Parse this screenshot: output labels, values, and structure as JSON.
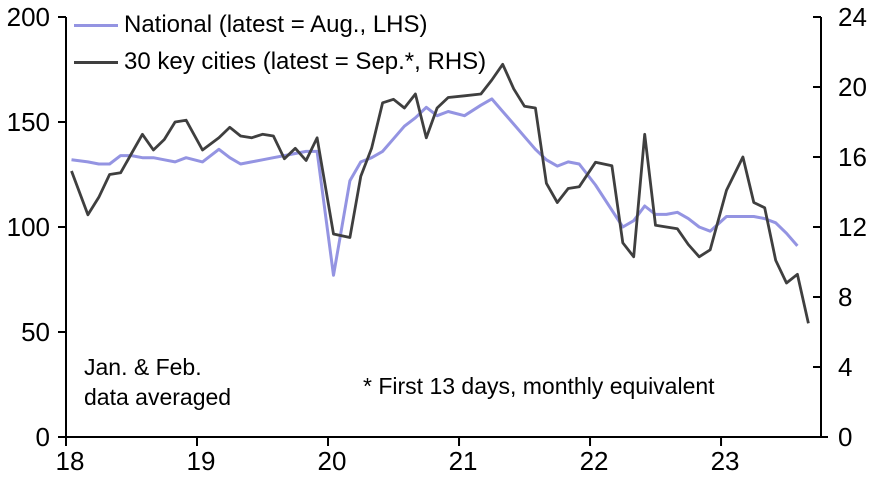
{
  "chart_data": {
    "type": "line",
    "title": "",
    "xlabel": "",
    "ylabel_left": "",
    "ylabel_right": "",
    "grid": false,
    "legend_position": "top-left-inside",
    "axis_color": "#000000",
    "xlim": [
      18,
      23.763
    ],
    "x_ticks": [
      18,
      19,
      20,
      21,
      22,
      23
    ],
    "x_tick_labels": [
      "18",
      "19",
      "20",
      "21",
      "22",
      "23"
    ],
    "left_axis": {
      "range": [
        0,
        200
      ],
      "ticks": [
        0,
        50,
        100,
        150,
        200
      ],
      "tick_labels": [
        "0",
        "50",
        "100",
        "150",
        "200"
      ]
    },
    "right_axis": {
      "range": [
        0,
        24
      ],
      "ticks": [
        0,
        4,
        8,
        12,
        16,
        20,
        24
      ],
      "tick_labels": [
        "0",
        "4",
        "8",
        "12",
        "16",
        "20",
        "24"
      ]
    },
    "legend": [
      {
        "label": "National (latest = Aug., LHS)",
        "color": "#9494e2",
        "axis": "left"
      },
      {
        "label": "30 key cities (latest = Sep.*, RHS)",
        "color": "#3f3f3f",
        "axis": "right"
      }
    ],
    "annotations": [
      {
        "id": "data-averaged-note",
        "line1": "Jan. & Feb.",
        "line2": "data averaged"
      },
      {
        "id": "footnote",
        "text": "* First 13 days, monthly equivalent"
      }
    ],
    "series": [
      {
        "name": "National",
        "axis": "left",
        "color": "#9494e2",
        "x": [
          18.042,
          18.167,
          18.25,
          18.333,
          18.417,
          18.5,
          18.583,
          18.667,
          18.75,
          18.833,
          18.917,
          19.042,
          19.167,
          19.25,
          19.333,
          19.417,
          19.5,
          19.583,
          19.667,
          19.75,
          19.833,
          19.917,
          20.042,
          20.167,
          20.25,
          20.333,
          20.417,
          20.5,
          20.583,
          20.667,
          20.75,
          20.833,
          20.917,
          21.042,
          21.167,
          21.25,
          21.333,
          21.417,
          21.5,
          21.583,
          21.667,
          21.75,
          21.833,
          21.917,
          22.042,
          22.167,
          22.25,
          22.333,
          22.417,
          22.5,
          22.583,
          22.667,
          22.75,
          22.833,
          22.917,
          23.042,
          23.167,
          23.25,
          23.333,
          23.417,
          23.5,
          23.583
        ],
        "values": [
          132,
          131,
          130,
          130,
          134,
          134,
          133,
          133,
          132,
          131,
          133,
          131,
          137,
          133,
          130,
          131,
          132,
          133,
          134,
          135,
          136,
          136,
          77,
          122,
          131,
          133,
          136,
          142,
          148,
          152,
          157,
          153,
          155,
          153,
          158,
          161,
          155,
          149,
          143,
          137,
          132,
          129,
          131,
          130,
          120,
          108,
          100,
          103,
          110,
          106,
          106,
          107,
          104,
          100,
          98,
          105,
          105,
          105,
          104,
          102,
          97,
          91
        ]
      },
      {
        "name": "30 key cities",
        "axis": "right",
        "color": "#3f3f3f",
        "x": [
          18.042,
          18.167,
          18.25,
          18.333,
          18.417,
          18.5,
          18.583,
          18.667,
          18.75,
          18.833,
          18.917,
          19.042,
          19.167,
          19.25,
          19.333,
          19.417,
          19.5,
          19.583,
          19.667,
          19.75,
          19.833,
          19.917,
          20.042,
          20.167,
          20.25,
          20.333,
          20.417,
          20.5,
          20.583,
          20.667,
          20.75,
          20.833,
          20.917,
          21.042,
          21.167,
          21.25,
          21.333,
          21.417,
          21.5,
          21.583,
          21.667,
          21.75,
          21.833,
          21.917,
          22.042,
          22.167,
          22.25,
          22.333,
          22.417,
          22.5,
          22.583,
          22.667,
          22.75,
          22.833,
          22.917,
          23.042,
          23.167,
          23.25,
          23.333,
          23.417,
          23.5,
          23.583,
          23.667
        ],
        "values": [
          15.2,
          12.7,
          13.7,
          15.0,
          15.1,
          16.2,
          17.3,
          16.4,
          17.0,
          18.0,
          18.1,
          16.4,
          17.1,
          17.7,
          17.2,
          17.1,
          17.3,
          17.2,
          15.9,
          16.5,
          15.8,
          17.1,
          11.6,
          11.4,
          14.9,
          16.5,
          19.1,
          19.3,
          18.8,
          19.6,
          17.1,
          18.8,
          19.4,
          19.5,
          19.6,
          20.4,
          21.3,
          19.9,
          18.9,
          18.8,
          14.5,
          13.4,
          14.2,
          14.3,
          15.7,
          15.5,
          11.1,
          10.3,
          17.3,
          12.1,
          12.0,
          11.9,
          11.0,
          10.3,
          10.7,
          14.1,
          16.0,
          13.4,
          13.1,
          10.1,
          8.8,
          9.3,
          6.5
        ]
      }
    ]
  }
}
